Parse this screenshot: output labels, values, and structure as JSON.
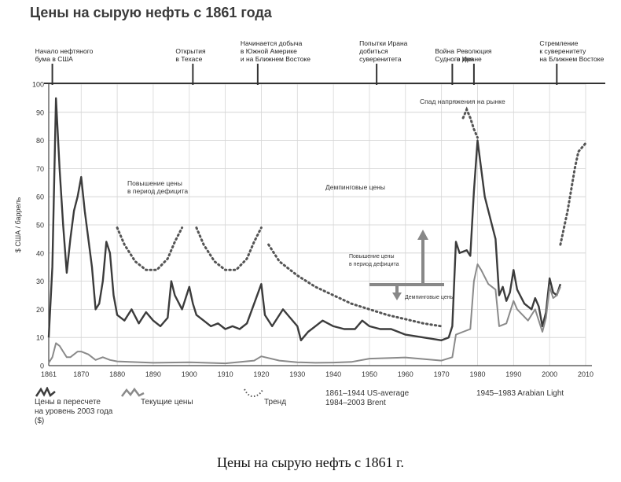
{
  "title": "Цены на сырую нефть с 1861 года",
  "caption": "Цены на сырую нефть с 1861 г.",
  "colors": {
    "real": "#3c3c3c",
    "nominal": "#8a8a8a",
    "trend": "#555555",
    "axis": "#444444"
  },
  "chart_data": {
    "type": "line",
    "title": "Цены на сырую нефть с 1861 года",
    "xlabel": "",
    "ylabel": "$ США / баррель",
    "xlim": [
      1861,
      2010
    ],
    "ylim": [
      0,
      100
    ],
    "grid": true,
    "x_ticks": [
      "1861",
      "1870",
      "1880",
      "1890",
      "1900",
      "1910",
      "1920",
      "1930",
      "1940",
      "1950",
      "1960",
      "1970",
      "1980",
      "1990",
      "2000",
      "2010"
    ],
    "y_ticks": [
      "0",
      "10",
      "20",
      "30",
      "40",
      "50",
      "60",
      "70",
      "80",
      "90",
      "100"
    ],
    "series": [
      {
        "name": "Цены в пересчете на уровень 2003 года ($)",
        "style": "solid-dark",
        "points": [
          [
            1861,
            10
          ],
          [
            1862,
            35
          ],
          [
            1863,
            95
          ],
          [
            1864,
            70
          ],
          [
            1865,
            50
          ],
          [
            1866,
            33
          ],
          [
            1867,
            45
          ],
          [
            1868,
            55
          ],
          [
            1869,
            60
          ],
          [
            1870,
            67
          ],
          [
            1871,
            55
          ],
          [
            1872,
            45
          ],
          [
            1873,
            35
          ],
          [
            1874,
            20
          ],
          [
            1875,
            22
          ],
          [
            1876,
            30
          ],
          [
            1877,
            44
          ],
          [
            1878,
            40
          ],
          [
            1879,
            25
          ],
          [
            1880,
            18
          ],
          [
            1882,
            16
          ],
          [
            1884,
            20
          ],
          [
            1886,
            15
          ],
          [
            1888,
            19
          ],
          [
            1890,
            16
          ],
          [
            1892,
            14
          ],
          [
            1894,
            17
          ],
          [
            1895,
            30
          ],
          [
            1896,
            25
          ],
          [
            1898,
            20
          ],
          [
            1900,
            28
          ],
          [
            1901,
            22
          ],
          [
            1902,
            18
          ],
          [
            1904,
            16
          ],
          [
            1906,
            14
          ],
          [
            1908,
            15
          ],
          [
            1910,
            13
          ],
          [
            1912,
            14
          ],
          [
            1914,
            13
          ],
          [
            1916,
            15
          ],
          [
            1918,
            22
          ],
          [
            1920,
            29
          ],
          [
            1921,
            18
          ],
          [
            1923,
            14
          ],
          [
            1926,
            20
          ],
          [
            1928,
            17
          ],
          [
            1930,
            14
          ],
          [
            1931,
            9
          ],
          [
            1933,
            12
          ],
          [
            1935,
            14
          ],
          [
            1937,
            16
          ],
          [
            1940,
            14
          ],
          [
            1943,
            13
          ],
          [
            1946,
            13
          ],
          [
            1948,
            16
          ],
          [
            1950,
            14
          ],
          [
            1953,
            13
          ],
          [
            1956,
            13
          ],
          [
            1958,
            12
          ],
          [
            1960,
            11
          ],
          [
            1965,
            10
          ],
          [
            1970,
            9
          ],
          [
            1972,
            10
          ],
          [
            1973,
            14
          ],
          [
            1974,
            44
          ],
          [
            1975,
            40
          ],
          [
            1977,
            41
          ],
          [
            1978,
            39
          ],
          [
            1979,
            62
          ],
          [
            1980,
            80
          ],
          [
            1981,
            70
          ],
          [
            1982,
            60
          ],
          [
            1984,
            50
          ],
          [
            1985,
            45
          ],
          [
            1986,
            25
          ],
          [
            1987,
            28
          ],
          [
            1988,
            23
          ],
          [
            1989,
            26
          ],
          [
            1990,
            34
          ],
          [
            1991,
            27
          ],
          [
            1993,
            22
          ],
          [
            1995,
            20
          ],
          [
            1996,
            24
          ],
          [
            1997,
            21
          ],
          [
            1998,
            14
          ],
          [
            1999,
            19
          ],
          [
            2000,
            31
          ],
          [
            2001,
            26
          ],
          [
            2002,
            25
          ],
          [
            2003,
            29
          ]
        ]
      },
      {
        "name": "Текущие цены",
        "style": "solid-light",
        "points": [
          [
            1861,
            1
          ],
          [
            1862,
            3
          ],
          [
            1863,
            8
          ],
          [
            1864,
            7
          ],
          [
            1865,
            5
          ],
          [
            1866,
            3
          ],
          [
            1867,
            3
          ],
          [
            1868,
            4
          ],
          [
            1869,
            5
          ],
          [
            1870,
            5
          ],
          [
            1872,
            4
          ],
          [
            1874,
            2
          ],
          [
            1876,
            3
          ],
          [
            1878,
            2
          ],
          [
            1880,
            1.5
          ],
          [
            1890,
            1
          ],
          [
            1900,
            1.2
          ],
          [
            1910,
            0.8
          ],
          [
            1918,
            1.8
          ],
          [
            1920,
            3.3
          ],
          [
            1925,
            1.8
          ],
          [
            1930,
            1.2
          ],
          [
            1935,
            1
          ],
          [
            1940,
            1.1
          ],
          [
            1945,
            1.3
          ],
          [
            1950,
            2.5
          ],
          [
            1960,
            2.9
          ],
          [
            1970,
            1.8
          ],
          [
            1973,
            3
          ],
          [
            1974,
            11
          ],
          [
            1976,
            12
          ],
          [
            1978,
            13
          ],
          [
            1979,
            30
          ],
          [
            1980,
            36
          ],
          [
            1981,
            34
          ],
          [
            1983,
            29
          ],
          [
            1985,
            27
          ],
          [
            1986,
            14
          ],
          [
            1988,
            15
          ],
          [
            1990,
            23
          ],
          [
            1991,
            20
          ],
          [
            1994,
            16
          ],
          [
            1996,
            20
          ],
          [
            1998,
            12
          ],
          [
            1999,
            17
          ],
          [
            2000,
            28
          ],
          [
            2001,
            24
          ],
          [
            2002,
            25
          ],
          [
            2003,
            28
          ]
        ]
      },
      {
        "name": "Тренд",
        "style": "dotted",
        "segments": [
          [
            [
              1880,
              49
            ],
            [
              1882,
              43
            ],
            [
              1885,
              37
            ],
            [
              1888,
              34
            ],
            [
              1891,
              34
            ],
            [
              1894,
              38
            ],
            [
              1896,
              44
            ],
            [
              1898,
              49
            ]
          ],
          [
            [
              1902,
              49
            ],
            [
              1904,
              43
            ],
            [
              1907,
              37
            ],
            [
              1910,
              34
            ],
            [
              1913,
              34
            ],
            [
              1916,
              38
            ],
            [
              1918,
              44
            ],
            [
              1920,
              49
            ]
          ],
          [
            [
              1922,
              43
            ],
            [
              1925,
              37
            ],
            [
              1930,
              32
            ],
            [
              1935,
              28
            ],
            [
              1940,
              25
            ],
            [
              1945,
              22
            ],
            [
              1950,
              20
            ],
            [
              1955,
              18
            ],
            [
              1960,
              16.5
            ],
            [
              1965,
              15
            ],
            [
              1970,
              14
            ]
          ],
          [
            [
              1976,
              88
            ],
            [
              1977,
              91
            ],
            [
              1978,
              88
            ],
            [
              1979,
              84
            ],
            [
              1980,
              81
            ]
          ],
          [
            [
              2003,
              43
            ],
            [
              2005,
              55
            ],
            [
              2007,
              70
            ],
            [
              2008,
              76
            ],
            [
              2010,
              79
            ]
          ]
        ]
      }
    ],
    "timeline_events": [
      {
        "year": 1862,
        "label": [
          "Начало нефтяного",
          "бума в США"
        ]
      },
      {
        "year": 1901,
        "label": [
          "Открытия",
          "в Техасе"
        ]
      },
      {
        "year": 1919,
        "label": [
          "Начинается добыча",
          "в Южной Америке",
          "и на Ближнем Востоке"
        ]
      },
      {
        "year": 1952,
        "label": [
          "Попытки Ирана",
          "добиться",
          "суверенитета"
        ]
      },
      {
        "year": 1973,
        "label": [
          "Война",
          "Судного дня"
        ]
      },
      {
        "year": 1979,
        "label": [
          "Революция",
          "в Иране"
        ]
      },
      {
        "year": 2002,
        "label": [
          "Стремление",
          "к суверенитету",
          "на Ближнем Востоке"
        ]
      }
    ],
    "annotations": [
      {
        "text": [
          "Повышение цены",
          "в период дефицита"
        ]
      },
      {
        "text": [
          "Демпинговые цены"
        ]
      },
      {
        "text": [
          "Спад напряжения на рынке"
        ]
      },
      {
        "text": [
          "Повышение цены",
          "в период дефицита"
        ]
      },
      {
        "text": [
          "Демпинговые цены"
        ]
      }
    ],
    "period_notes": [
      {
        "text": "1861–1944  US-average"
      },
      {
        "text": "1984–2003 Brent"
      },
      {
        "text": "1945–1983 Arabian Light"
      }
    ]
  },
  "legend": [
    {
      "label": [
        "Цены в пересчете",
        "на уровень 2003 года",
        "($)"
      ],
      "icon": "dark-wave-icon"
    },
    {
      "label": [
        "Текущие цены"
      ],
      "icon": "light-wave-icon"
    },
    {
      "label": [
        "Тренд"
      ],
      "icon": "dotted-curve-icon"
    }
  ]
}
